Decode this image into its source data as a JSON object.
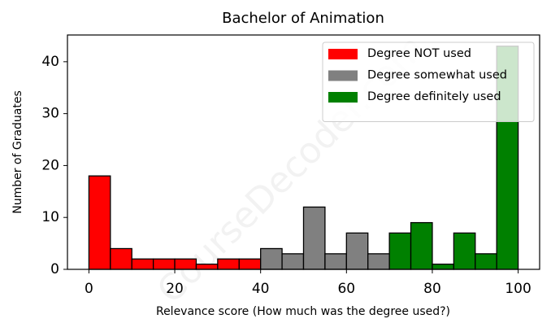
{
  "chart_data": {
    "type": "histogram",
    "title": "Bachelor of Animation",
    "xlabel": "Relevance score (How much was the degree used?)",
    "ylabel": "Number of Graduates",
    "watermark": "CourseDecoder.com",
    "series": [
      {
        "name": "Degree NOT used",
        "color": "#ff0000",
        "bins": [
          0,
          5,
          10,
          15,
          20,
          25,
          30,
          35,
          40
        ],
        "values": [
          18,
          4,
          2,
          2,
          2,
          1,
          2,
          2
        ]
      },
      {
        "name": "Degree somewhat used",
        "color": "#808080",
        "bins": [
          40,
          45,
          50,
          55,
          60,
          65,
          70
        ],
        "values": [
          4,
          3,
          12,
          3,
          7,
          3
        ]
      },
      {
        "name": "Degree definitely used",
        "color": "#008000",
        "bins": [
          70,
          75,
          80,
          85,
          90,
          95,
          100
        ],
        "values": [
          7,
          9,
          1,
          7,
          3,
          43
        ]
      }
    ],
    "xlim": [
      -5,
      105
    ],
    "ylim": [
      0,
      45.15
    ],
    "xticks": [
      0,
      20,
      40,
      60,
      80,
      100
    ],
    "yticks": [
      0,
      10,
      20,
      30,
      40
    ],
    "legend": "upper right"
  }
}
